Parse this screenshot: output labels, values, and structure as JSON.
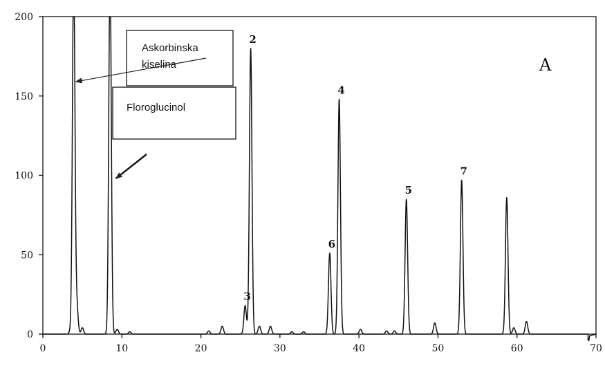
{
  "chart_data": {
    "type": "line",
    "title": "",
    "xlabel": "",
    "ylabel": "",
    "xlim": [
      0,
      70
    ],
    "ylim": [
      0,
      200
    ],
    "x_ticks": [
      0,
      10,
      20,
      30,
      40,
      50,
      60,
      70
    ],
    "y_ticks": [
      0,
      50,
      100,
      150,
      200
    ],
    "grid": false,
    "legend": "none",
    "panel_label": "A",
    "line_color": "#111111",
    "peaks": [
      {
        "x": 3.5,
        "y": 2
      },
      {
        "x": 3.9,
        "y": 230
      },
      {
        "x": 4.3,
        "y": 17
      },
      {
        "x": 5.0,
        "y": 4
      },
      {
        "x": 8.5,
        "y": 230
      },
      {
        "x": 9.4,
        "y": 3
      },
      {
        "x": 11.0,
        "y": 1.5
      },
      {
        "x": 21.0,
        "y": 2
      },
      {
        "x": 22.7,
        "y": 5
      },
      {
        "x": 25.6,
        "y": 18
      },
      {
        "x": 26.3,
        "y": 180
      },
      {
        "x": 27.4,
        "y": 5
      },
      {
        "x": 28.8,
        "y": 5
      },
      {
        "x": 31.5,
        "y": 1.5
      },
      {
        "x": 33.0,
        "y": 1.5
      },
      {
        "x": 36.3,
        "y": 51
      },
      {
        "x": 37.5,
        "y": 148
      },
      {
        "x": 40.2,
        "y": 3
      },
      {
        "x": 43.5,
        "y": 2
      },
      {
        "x": 44.5,
        "y": 2
      },
      {
        "x": 46.0,
        "y": 85
      },
      {
        "x": 49.6,
        "y": 7
      },
      {
        "x": 53.0,
        "y": 97
      },
      {
        "x": 58.7,
        "y": 86
      },
      {
        "x": 59.6,
        "y": 4
      },
      {
        "x": 61.2,
        "y": 8
      }
    ],
    "peak_labels": [
      {
        "text": "2",
        "x": 26.3,
        "y": 180
      },
      {
        "text": "3",
        "x": 25.6,
        "y": 18
      },
      {
        "text": "4",
        "x": 37.5,
        "y": 148
      },
      {
        "text": "5",
        "x": 46.0,
        "y": 85
      },
      {
        "text": "6",
        "x": 36.3,
        "y": 51
      },
      {
        "text": "7",
        "x": 53.0,
        "y": 97
      }
    ],
    "annotations": [
      {
        "lines": [
          "Askorbinska",
          "kiselina"
        ],
        "points_to_x": 3.9,
        "points_to_y": 159
      },
      {
        "lines": [
          "Floroglucinol"
        ],
        "points_to_x": 8.8,
        "points_to_y": 98
      }
    ]
  }
}
